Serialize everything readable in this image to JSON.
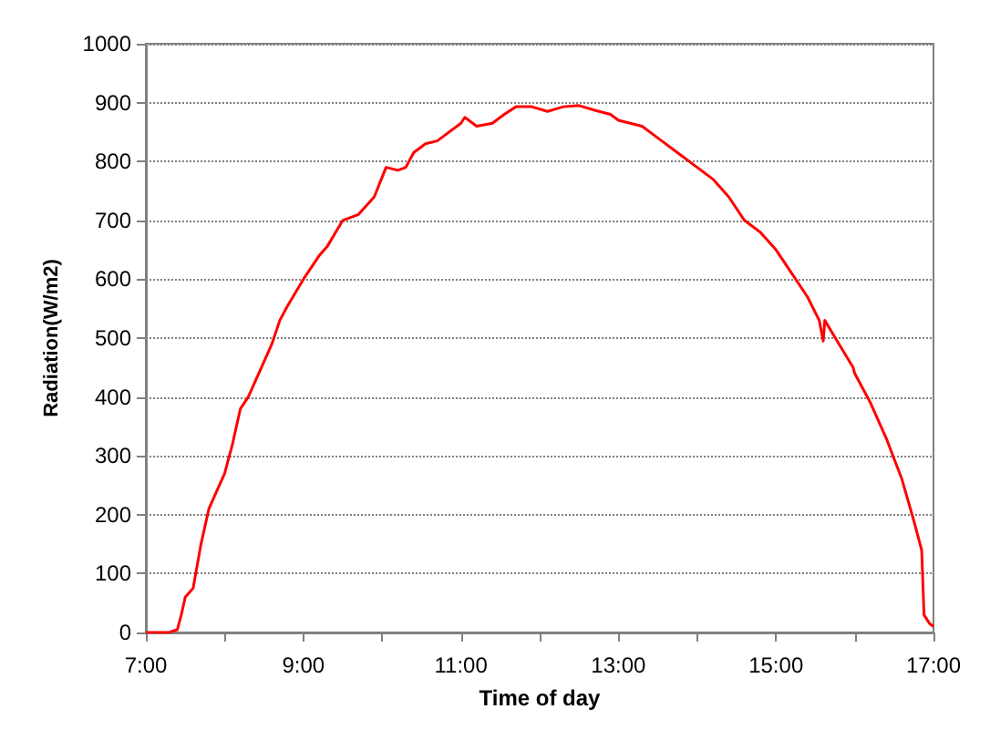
{
  "chart_data": {
    "type": "line",
    "xlabel": "Time of day",
    "ylabel": "Radiation(W/m2)",
    "x": [
      7.0,
      7.3,
      7.4,
      7.45,
      7.5,
      7.6,
      7.7,
      7.8,
      7.9,
      8.0,
      8.1,
      8.2,
      8.3,
      8.5,
      8.6,
      8.7,
      8.8,
      9.0,
      9.2,
      9.3,
      9.5,
      9.7,
      9.9,
      10.05,
      10.2,
      10.3,
      10.4,
      10.55,
      10.7,
      10.8,
      11.0,
      11.05,
      11.2,
      11.4,
      11.55,
      11.7,
      11.9,
      12.1,
      12.3,
      12.5,
      12.7,
      12.9,
      13.0,
      13.3,
      13.5,
      13.8,
      14.0,
      14.2,
      14.4,
      14.6,
      14.8,
      15.0,
      15.2,
      15.4,
      15.55,
      15.6,
      15.62,
      15.8,
      15.98,
      16.0,
      16.2,
      16.4,
      16.6,
      16.75,
      16.85,
      16.88,
      16.95,
      17.0
    ],
    "series": [
      {
        "color": "#ff0000",
        "values": [
          0,
          0,
          5,
          30,
          60,
          75,
          150,
          210,
          240,
          270,
          320,
          380,
          400,
          460,
          490,
          530,
          555,
          600,
          640,
          655,
          700,
          710,
          740,
          790,
          785,
          790,
          815,
          830,
          835,
          845,
          865,
          875,
          860,
          865,
          880,
          893,
          893,
          885,
          893,
          895,
          887,
          880,
          870,
          860,
          840,
          810,
          790,
          770,
          740,
          700,
          680,
          650,
          610,
          570,
          530,
          495,
          530,
          490,
          450,
          440,
          390,
          330,
          260,
          190,
          140,
          30,
          15,
          10
        ]
      }
    ],
    "xlim": [
      7,
      17
    ],
    "xticks": [
      {
        "value": 7,
        "label": "7:00"
      },
      {
        "value": 8,
        "label": null
      },
      {
        "value": 9,
        "label": "9:00"
      },
      {
        "value": 10,
        "label": null
      },
      {
        "value": 11,
        "label": "11:00"
      },
      {
        "value": 12,
        "label": null
      },
      {
        "value": 13,
        "label": "13:00"
      },
      {
        "value": 14,
        "label": null
      },
      {
        "value": 15,
        "label": "15:00"
      },
      {
        "value": 16,
        "label": null
      },
      {
        "value": 17,
        "label": "17:00"
      }
    ],
    "ylim": [
      0,
      1000
    ],
    "yticks": [
      0,
      100,
      200,
      300,
      400,
      500,
      600,
      700,
      800,
      900,
      1000
    ],
    "grid": "y",
    "marker": "none",
    "line_style": "solid"
  }
}
